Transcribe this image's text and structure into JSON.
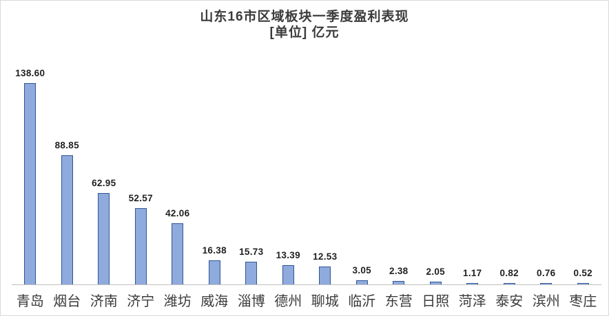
{
  "chart_data": {
    "type": "bar",
    "title": "山东16市区域板块一季度盈利表现",
    "subtitle": "[单位] 亿元",
    "unit": "亿元",
    "categories": [
      "青岛",
      "烟台",
      "济南",
      "济宁",
      "潍坊",
      "威海",
      "淄博",
      "德州",
      "聊城",
      "临沂",
      "东营",
      "日照",
      "菏泽",
      "泰安",
      "滨州",
      "枣庄"
    ],
    "values": [
      138.6,
      88.85,
      62.95,
      52.57,
      42.06,
      16.38,
      15.73,
      13.39,
      12.53,
      3.05,
      2.38,
      2.05,
      1.17,
      0.82,
      0.76,
      0.52
    ],
    "value_labels": [
      "138.60",
      "88.85",
      "62.95",
      "52.57",
      "42.06",
      "16.38",
      "15.73",
      "13.39",
      "12.53",
      "3.05",
      "2.38",
      "2.05",
      "1.17",
      "0.82",
      "0.76",
      "0.52"
    ],
    "ylim": [
      0,
      140
    ],
    "grid": false,
    "legend_position": "none",
    "y_axis_visible": false,
    "colors": {
      "bar_fill": "#8faadc",
      "bar_border": "#2f5597",
      "axis_line": "#bfbfbf",
      "frame_border": "#d9d9d9",
      "title_text": "#3b3b3b",
      "data_label_text": "#1f1f1f"
    }
  }
}
